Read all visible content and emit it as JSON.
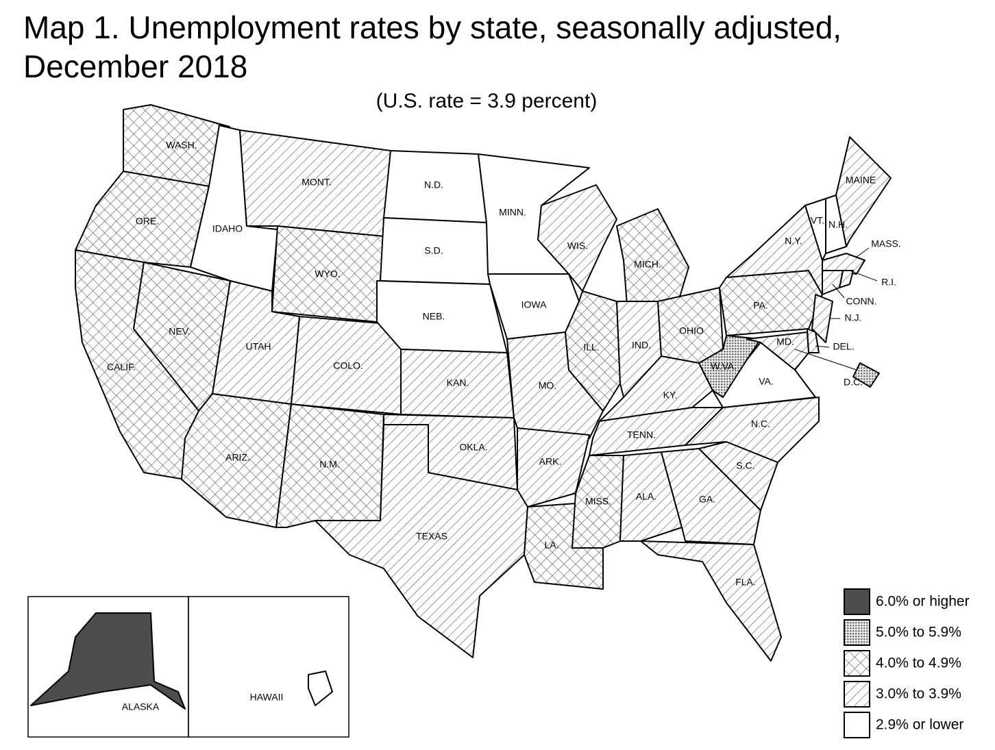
{
  "title": "Map 1. Unemployment rates by state, seasonally adjusted,",
  "title_line2": "December 2018",
  "subtitle": "(U.S. rate = 3.9 percent)",
  "legend": [
    {
      "label": "6.0% or higher",
      "pattern": "solid"
    },
    {
      "label": "5.0% to 5.9%",
      "pattern": "dots"
    },
    {
      "label": "4.0% to 4.9%",
      "pattern": "crosshatch"
    },
    {
      "label": "3.0% to 3.9%",
      "pattern": "hatch"
    },
    {
      "label": "2.9% or lower",
      "pattern": "none"
    }
  ],
  "states": [
    {
      "label": "WASH.",
      "class": 2
    },
    {
      "label": "ORE.",
      "class": 2
    },
    {
      "label": "CALIF.",
      "class": 2
    },
    {
      "label": "NEV.",
      "class": 2
    },
    {
      "label": "IDAHO",
      "class": 4
    },
    {
      "label": "MONT.",
      "class": 3
    },
    {
      "label": "WYO.",
      "class": 2
    },
    {
      "label": "UTAH",
      "class": 3
    },
    {
      "label": "COLO.",
      "class": 3
    },
    {
      "label": "ARIZ.",
      "class": 2
    },
    {
      "label": "N.M.",
      "class": 2
    },
    {
      "label": "N.D.",
      "class": 4
    },
    {
      "label": "S.D.",
      "class": 4
    },
    {
      "label": "NEB.",
      "class": 4
    },
    {
      "label": "KAN.",
      "class": 3
    },
    {
      "label": "OKLA.",
      "class": 3
    },
    {
      "label": "TEXAS",
      "class": 3
    },
    {
      "label": "MINN.",
      "class": 4
    },
    {
      "label": "IOWA",
      "class": 4
    },
    {
      "label": "MO.",
      "class": 3
    },
    {
      "label": "ARK.",
      "class": 3
    },
    {
      "label": "LA.",
      "class": 2
    },
    {
      "label": "WIS.",
      "class": 3
    },
    {
      "label": "ILL.",
      "class": 2
    },
    {
      "label": "MICH.",
      "class": 2
    },
    {
      "label": "IND.",
      "class": 3
    },
    {
      "label": "OHIO",
      "class": 2
    },
    {
      "label": "KY.",
      "class": 3
    },
    {
      "label": "TENN.",
      "class": 3
    },
    {
      "label": "MISS.",
      "class": 2
    },
    {
      "label": "ALA.",
      "class": 3
    },
    {
      "label": "GA.",
      "class": 3
    },
    {
      "label": "FLA.",
      "class": 3
    },
    {
      "label": "S.C.",
      "class": 3
    },
    {
      "label": "N.C.",
      "class": 3
    },
    {
      "label": "VA.",
      "class": 4
    },
    {
      "label": "W.VA.",
      "class": 1
    },
    {
      "label": "PA.",
      "class": 2
    },
    {
      "label": "N.Y.",
      "class": 3
    },
    {
      "label": "MAINE",
      "class": 3
    },
    {
      "label": "VT.",
      "class": 4
    },
    {
      "label": "N.H.",
      "class": 4
    },
    {
      "label": "MASS.",
      "class": 3
    },
    {
      "label": "R.I.",
      "class": 3
    },
    {
      "label": "CONN.",
      "class": 3
    },
    {
      "label": "N.J.",
      "class": 3
    },
    {
      "label": "DEL.",
      "class": 3
    },
    {
      "label": "MD.",
      "class": 3
    },
    {
      "label": "D.C.",
      "class": 1
    },
    {
      "label": "ALASKA",
      "class": 0
    },
    {
      "label": "HAWAII",
      "class": 4
    }
  ]
}
